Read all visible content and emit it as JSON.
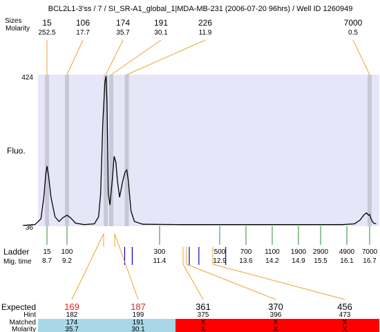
{
  "title": "BCL2L1-3'ss / 7 / SI_SR-A1_global_1|MDA-MB-231 (2006-07-20 96hrs) / Well ID 1260949",
  "labels": {
    "sizes_row": "Sizes",
    "molarity_row": "Molarity",
    "fluo_axis": "Fluo.",
    "ladder_row": "Ladder",
    "migtime_row": "Mig. time",
    "expected_row": "Expected",
    "hint_row": "Hint",
    "matched_row": "Matched",
    "bottom_molarity_row": "Molarity"
  },
  "colors": {
    "plot_bg": "#e6e6f8",
    "peak_band": "#c8c8d8",
    "trace": "#000000",
    "ladder_tick": "#2e8b2e",
    "leader_line": "#f0a030",
    "marker_line": "#0000cc",
    "expected_red": "#e02020",
    "matched_ok": "#a8d8e8",
    "matched_fail": "#ff0000"
  },
  "chart_data": {
    "type": "line",
    "y_axis": {
      "label": "Fluo.",
      "min": 36,
      "max": 424,
      "ticks": [
        "424",
        "36"
      ]
    },
    "peaks": [
      {
        "size": "15",
        "molarity": "252.5",
        "mig_time": 8.7
      },
      {
        "size": "106",
        "molarity": "17.7",
        "mig_time": 9.2
      },
      {
        "size": "174",
        "molarity": "35.7",
        "mig_time": 10.12
      },
      {
        "size": "191",
        "molarity": "30.1",
        "mig_time": 10.25
      },
      {
        "size": "226",
        "molarity": "11.9",
        "mig_time": 10.62
      },
      {
        "size": "7000",
        "molarity": "0.5",
        "mig_time": 16.7
      }
    ],
    "ladder": [
      {
        "size": "15",
        "mig_time": "8.7"
      },
      {
        "size": "100",
        "mig_time": "9.2"
      },
      {
        "size": "300",
        "mig_time": "11.4"
      },
      {
        "size": "500",
        "mig_time": "12.9"
      },
      {
        "size": "700",
        "mig_time": "13.6"
      },
      {
        "size": "1100",
        "mig_time": "14.2"
      },
      {
        "size": "1900",
        "mig_time": "14.9"
      },
      {
        "size": "2900",
        "mig_time": "15.5"
      },
      {
        "size": "4900",
        "mig_time": "16.1"
      },
      {
        "size": "7000",
        "mig_time": "16.7"
      }
    ],
    "trace": [
      [
        8.1,
        38
      ],
      [
        8.4,
        40
      ],
      [
        8.55,
        55
      ],
      [
        8.62,
        110
      ],
      [
        8.67,
        170
      ],
      [
        8.7,
        190
      ],
      [
        8.74,
        165
      ],
      [
        8.8,
        110
      ],
      [
        8.9,
        60
      ],
      [
        9.0,
        48
      ],
      [
        9.1,
        58
      ],
      [
        9.2,
        64
      ],
      [
        9.28,
        58
      ],
      [
        9.4,
        44
      ],
      [
        9.6,
        40
      ],
      [
        9.85,
        42
      ],
      [
        9.95,
        60
      ],
      [
        10.0,
        120
      ],
      [
        10.05,
        300
      ],
      [
        10.1,
        405
      ],
      [
        10.13,
        420
      ],
      [
        10.15,
        350
      ],
      [
        10.18,
        120
      ],
      [
        10.22,
        90
      ],
      [
        10.28,
        160
      ],
      [
        10.32,
        215
      ],
      [
        10.36,
        200
      ],
      [
        10.4,
        150
      ],
      [
        10.45,
        110
      ],
      [
        10.52,
        150
      ],
      [
        10.58,
        175
      ],
      [
        10.62,
        180
      ],
      [
        10.66,
        150
      ],
      [
        10.72,
        75
      ],
      [
        10.8,
        48
      ],
      [
        11.0,
        41
      ],
      [
        12.0,
        40
      ],
      [
        13.0,
        40
      ],
      [
        14.0,
        40
      ],
      [
        15.0,
        40
      ],
      [
        16.0,
        40
      ],
      [
        16.3,
        42
      ],
      [
        16.45,
        52
      ],
      [
        16.55,
        65
      ],
      [
        16.62,
        70
      ],
      [
        16.67,
        64
      ],
      [
        16.7,
        66
      ],
      [
        16.74,
        54
      ],
      [
        16.8,
        44
      ],
      [
        16.87,
        42
      ]
    ],
    "markers_mig_time": [
      10.57,
      10.75,
      12.14,
      12.38,
      13.06
    ],
    "matches": [
      {
        "expected": "169",
        "hint": "182",
        "matched": "174",
        "molarity": "35.7",
        "status": "matched"
      },
      {
        "expected": "187",
        "hint": "199",
        "matched": "191",
        "molarity": "30.1",
        "status": "matched"
      },
      {
        "expected": "361",
        "hint": "375",
        "matched": "X",
        "molarity": "X",
        "status": "unmatched"
      },
      {
        "expected": "370",
        "hint": "396",
        "matched": "X",
        "molarity": "X",
        "status": "unmatched"
      },
      {
        "expected": "456",
        "hint": "473",
        "matched": "X",
        "molarity": "X",
        "status": "unmatched"
      }
    ]
  }
}
